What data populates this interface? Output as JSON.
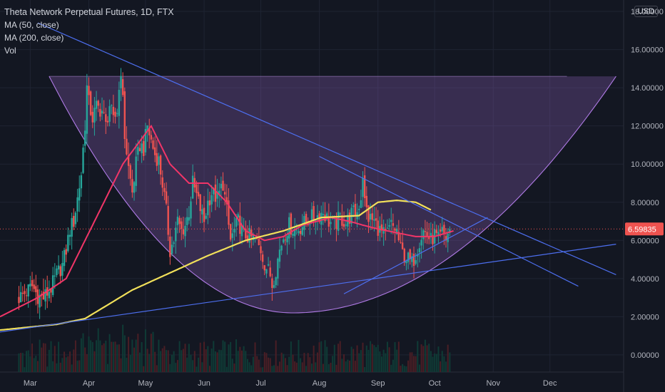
{
  "chart_data": {
    "type": "candlestick",
    "title": "Theta Network Perpetual Futures, 1D, FTX",
    "currency": "USD",
    "indicators": [
      {
        "name": "MA (50, close)",
        "color": "#f23568"
      },
      {
        "name": "MA (200, close)",
        "color": "#f1e05a"
      },
      {
        "name": "Vol",
        "color": "#26a69a"
      }
    ],
    "y_ticks": [
      "18.00000",
      "16.00000",
      "14.00000",
      "12.00000",
      "10.00000",
      "8.00000",
      "6.00000",
      "4.00000",
      "2.00000",
      "0.00000"
    ],
    "y_tick_values": [
      18,
      16,
      14,
      12,
      10,
      8,
      6,
      4,
      2,
      0
    ],
    "ylim": [
      -0.9,
      18.6
    ],
    "x_labels": [
      "Mar",
      "Apr",
      "May",
      "Jun",
      "Jul",
      "Aug",
      "Sep",
      "Oct",
      "Nov",
      "Dec"
    ],
    "x_label_days": [
      6,
      37,
      67,
      98,
      128,
      159,
      190,
      220,
      251,
      281
    ],
    "xlim": [
      -10,
      320
    ],
    "current_price": "6.59835",
    "current_price_value": 6.59835,
    "closes": [
      [
        0,
        3.0
      ],
      [
        4,
        3.3
      ],
      [
        7,
        3.6
      ],
      [
        10,
        3.1
      ],
      [
        13,
        3.0
      ],
      [
        17,
        3.5
      ],
      [
        20,
        4.2
      ],
      [
        23,
        4.7
      ],
      [
        25,
        5.5
      ],
      [
        27,
        6.6
      ],
      [
        29,
        7.0
      ],
      [
        31,
        8.2
      ],
      [
        33,
        9.5
      ],
      [
        35,
        12.1
      ],
      [
        36,
        14.0
      ],
      [
        37,
        13.2
      ],
      [
        39,
        12.4
      ],
      [
        41,
        13.0
      ],
      [
        44,
        12.8
      ],
      [
        46,
        12.0
      ],
      [
        48,
        13.1
      ],
      [
        50,
        12.2
      ],
      [
        52,
        12.8
      ],
      [
        54,
        15.0
      ],
      [
        56,
        11.5
      ],
      [
        58,
        9.8
      ],
      [
        60,
        8.5
      ],
      [
        62,
        10.0
      ],
      [
        64,
        11.0
      ],
      [
        66,
        10.8
      ],
      [
        68,
        12.0
      ],
      [
        70,
        11.2
      ],
      [
        72,
        10.5
      ],
      [
        74,
        10.2
      ],
      [
        76,
        9.0
      ],
      [
        78,
        7.5
      ],
      [
        80,
        5.5
      ],
      [
        82,
        6.0
      ],
      [
        84,
        7.0
      ],
      [
        86,
        6.5
      ],
      [
        88,
        6.8
      ],
      [
        90,
        7.5
      ],
      [
        92,
        9.0
      ],
      [
        95,
        8.0
      ],
      [
        98,
        7.0
      ],
      [
        100,
        8.0
      ],
      [
        102,
        8.5
      ],
      [
        105,
        8.2
      ],
      [
        108,
        9.0
      ],
      [
        110,
        7.5
      ],
      [
        112,
        6.0
      ],
      [
        114,
        6.5
      ],
      [
        116,
        7.0
      ],
      [
        119,
        6.3
      ],
      [
        122,
        6.2
      ],
      [
        125,
        6.0
      ],
      [
        128,
        5.5
      ],
      [
        130,
        4.8
      ],
      [
        133,
        4.2
      ],
      [
        134,
        3.7
      ],
      [
        136,
        4.5
      ],
      [
        138,
        5.5
      ],
      [
        140,
        6.2
      ],
      [
        143,
        6.8
      ],
      [
        146,
        6.5
      ],
      [
        149,
        6.7
      ],
      [
        152,
        7.0
      ],
      [
        155,
        7.2
      ],
      [
        158,
        7.3
      ],
      [
        161,
        7.5
      ],
      [
        164,
        7.0
      ],
      [
        167,
        6.8
      ],
      [
        170,
        7.2
      ],
      [
        173,
        6.9
      ],
      [
        176,
        7.4
      ],
      [
        179,
        7.5
      ],
      [
        181,
        8.3
      ],
      [
        182,
        9.5
      ],
      [
        183,
        8.0
      ],
      [
        185,
        7.2
      ],
      [
        188,
        7.0
      ],
      [
        191,
        6.5
      ],
      [
        194,
        6.2
      ],
      [
        197,
        6.8
      ],
      [
        200,
        6.5
      ],
      [
        202,
        5.5
      ],
      [
        204,
        5.2
      ],
      [
        206,
        5.0
      ],
      [
        208,
        4.8
      ],
      [
        210,
        5.3
      ],
      [
        212,
        6.0
      ],
      [
        214,
        6.5
      ],
      [
        216,
        6.3
      ],
      [
        218,
        6.0
      ],
      [
        220,
        6.3
      ],
      [
        222,
        6.0
      ],
      [
        224,
        6.4
      ],
      [
        226,
        6.1
      ],
      [
        228,
        6.6
      ]
    ],
    "ma50": [
      [
        -10,
        2.0
      ],
      [
        10,
        3.0
      ],
      [
        25,
        4.0
      ],
      [
        35,
        6.0
      ],
      [
        45,
        8.0
      ],
      [
        55,
        10.0
      ],
      [
        70,
        12.0
      ],
      [
        80,
        10.0
      ],
      [
        90,
        9.0
      ],
      [
        100,
        9.0
      ],
      [
        110,
        8.0
      ],
      [
        120,
        6.5
      ],
      [
        130,
        6.0
      ],
      [
        140,
        6.2
      ],
      [
        150,
        6.8
      ],
      [
        165,
        7.2
      ],
      [
        175,
        7.0
      ],
      [
        182,
        6.8
      ],
      [
        190,
        6.6
      ],
      [
        200,
        6.4
      ],
      [
        210,
        6.2
      ],
      [
        220,
        6.2
      ],
      [
        230,
        6.5
      ]
    ],
    "ma200": [
      [
        -10,
        1.3
      ],
      [
        20,
        1.6
      ],
      [
        35,
        1.9
      ],
      [
        45,
        2.5
      ],
      [
        60,
        3.4
      ],
      [
        80,
        4.3
      ],
      [
        100,
        5.2
      ],
      [
        120,
        6.0
      ],
      [
        140,
        6.5
      ],
      [
        160,
        7.2
      ],
      [
        180,
        7.3
      ],
      [
        190,
        8.0
      ],
      [
        200,
        8.1
      ],
      [
        210,
        8.0
      ],
      [
        218,
        7.6
      ]
    ],
    "overlay_shapes": {
      "cup_top_price": 14.6,
      "cup_left_day": 16,
      "cup_right_day": 316,
      "cup_bottom_price": 2.2,
      "cup_bottom_day": 145,
      "trend_lines": [
        [
          [
            10,
            17.4
          ],
          [
            316,
            4.2
          ]
        ],
        [
          [
            -10,
            1.2
          ],
          [
            316,
            5.8
          ]
        ],
        [
          [
            159,
            10.4
          ],
          [
            296,
            3.6
          ]
        ],
        [
          [
            172,
            3.2
          ],
          [
            248,
            7.2
          ]
        ]
      ]
    }
  }
}
